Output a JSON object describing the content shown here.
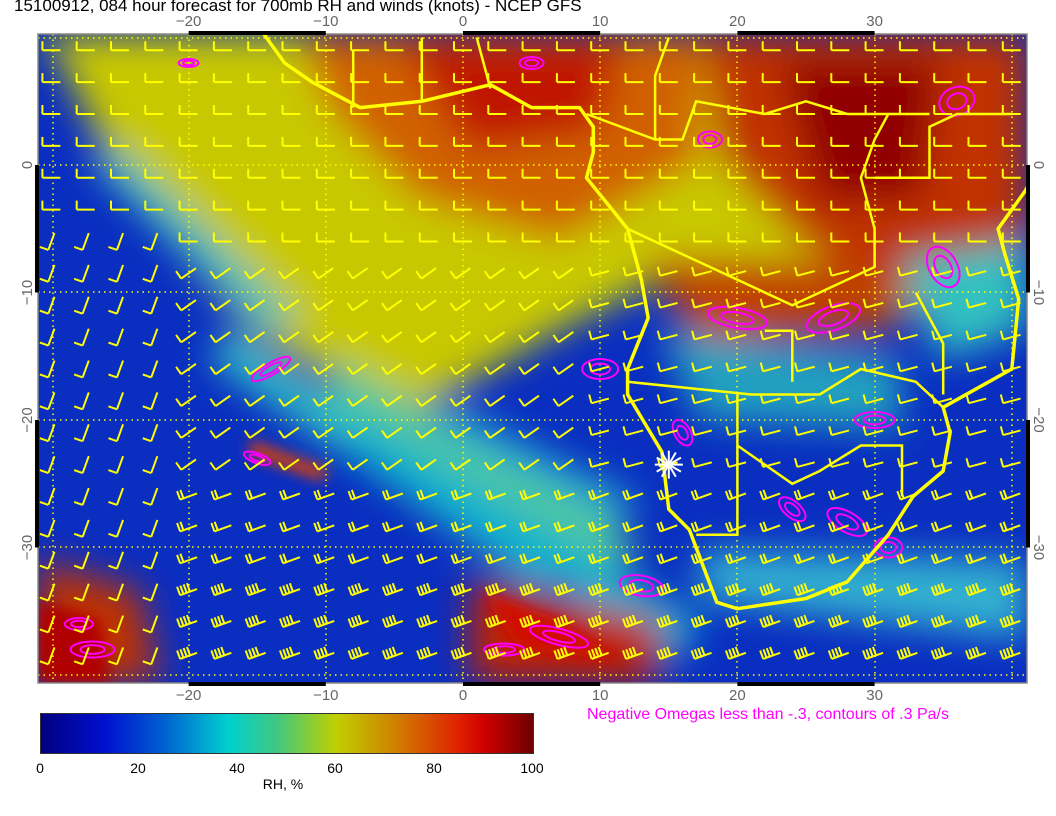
{
  "title": "15100912, 084 hour forecast for 700mb RH and winds (knots) - NCEP GFS",
  "map": {
    "lon_ticks": [
      "−20",
      "−10",
      "0",
      "10",
      "20",
      "30"
    ],
    "lat_ticks": [
      "0",
      "−10",
      "−20",
      "−30"
    ],
    "lon_range": [
      -31,
      41
    ],
    "lat_range": [
      -40.8,
      10.3
    ],
    "marker": {
      "icon": "star-icon",
      "lon": 15,
      "lat": -23.5,
      "color": "#ffffff"
    },
    "coastline_color": "#ffff00",
    "wind_barb_color": "#ffff00",
    "omega_contour_color": "#ff00ff"
  },
  "colorbar": {
    "labels": [
      "0",
      "20",
      "40",
      "60",
      "80",
      "100"
    ],
    "title": "RH, %",
    "range": [
      0,
      100
    ]
  },
  "legend": {
    "omega_text": "Negative Omegas less than -.3, contours of .3 Pa/s"
  }
}
